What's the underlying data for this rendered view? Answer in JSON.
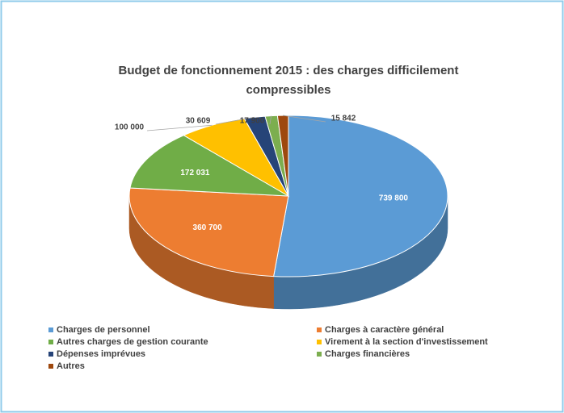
{
  "chart_data": {
    "type": "pie3d",
    "title": "Budget de fonctionnement 2015 : des charges difficilement compressibles",
    "categories": [
      "Charges de personnel",
      "Charges à caractère général",
      "Autres charges de gestion courante",
      "Virement à la section d'investissement",
      "Dépenses imprévues",
      "Charges financières",
      "Autres"
    ],
    "values": [
      739800,
      360700,
      172031,
      100000,
      30609,
      17900,
      15842
    ],
    "value_labels": [
      "739 800",
      "360 700",
      "172 031",
      "100 000",
      "30 609",
      "17 900",
      "15 842"
    ],
    "colors": [
      "#5b9bd5",
      "#ed7d31",
      "#70ad47",
      "#ffc000",
      "#264478",
      "#7cae4f",
      "#9e480e"
    ],
    "legend": "bottom"
  }
}
